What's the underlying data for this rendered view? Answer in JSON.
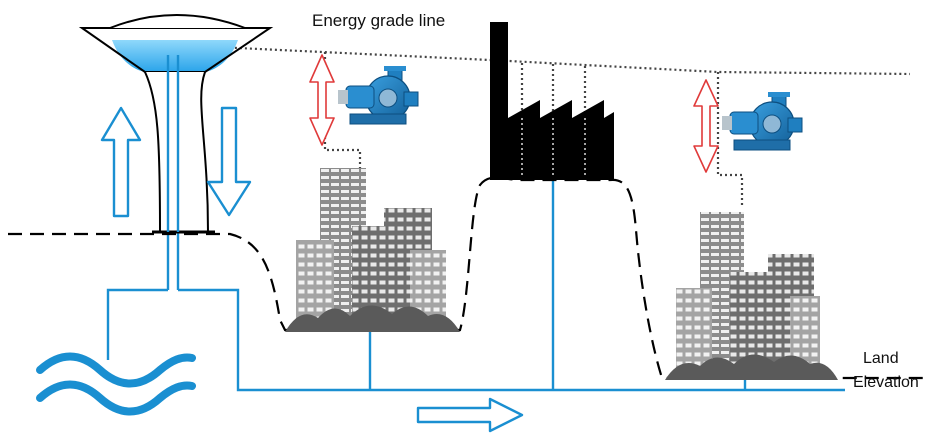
{
  "labels": {
    "energy_grade_line": "Energy grade line",
    "land_line1": "Land",
    "land_line2": "Elevation"
  },
  "icons": {
    "pump": "centrifugal-pump-icon",
    "water": "water-waves-icon",
    "factory": "factory-icon",
    "city": "city-buildings-icon",
    "tower": "water-tower-icon"
  },
  "colors": {
    "pipe": "#1a8fd1",
    "water_fill": "#3fb4ef",
    "pump": "#1f7fc0",
    "building_dark": "#6e6e6e",
    "building_light": "#a8a8a8",
    "building_mid": "#8c8c8c",
    "ground": "#5a5a5a",
    "factory": "#000000",
    "pressure_arrow": "#e03a3a",
    "line": "#000000"
  }
}
